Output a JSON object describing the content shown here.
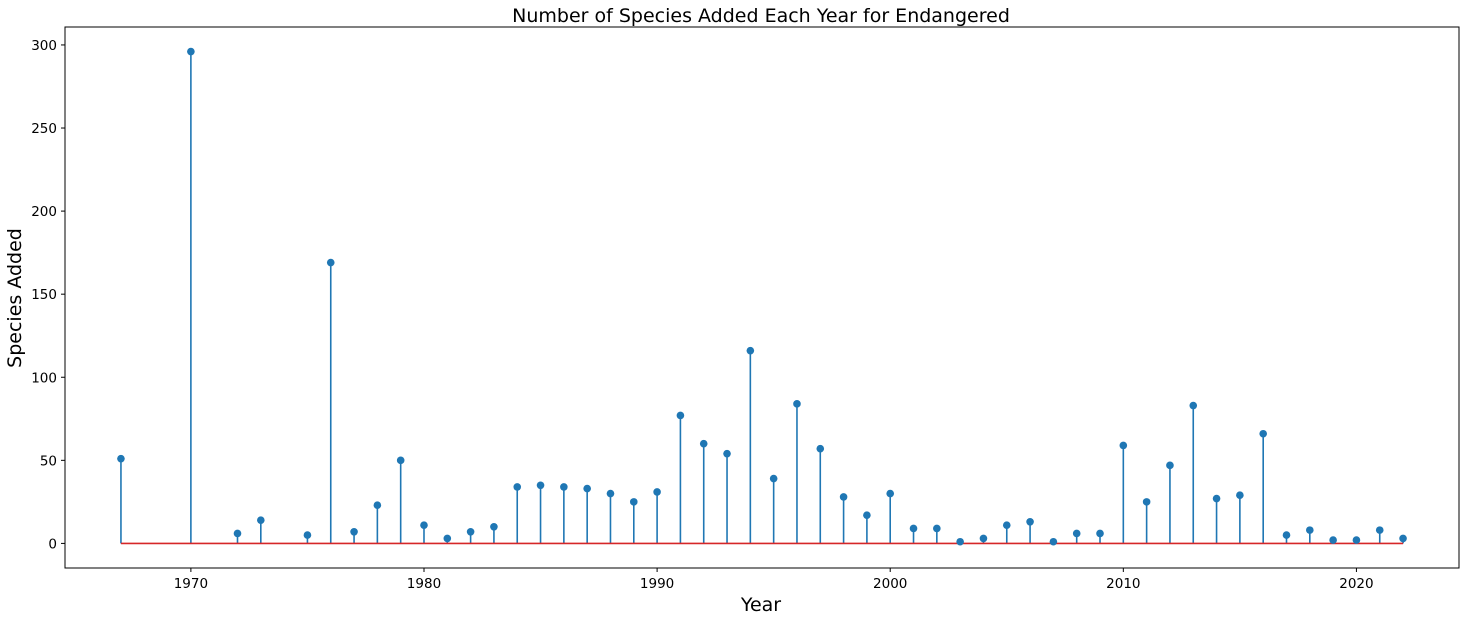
{
  "chart_data": {
    "type": "stem",
    "title": "Number of Species Added Each Year for Endangered",
    "xlabel": "Year",
    "ylabel": "Species Added",
    "xlim": [
      1964.6,
      2024.4
    ],
    "ylim": [
      -14.8,
      310.8
    ],
    "x_ticks": [
      1970,
      1980,
      1990,
      2000,
      2010,
      2020
    ],
    "y_ticks": [
      0,
      50,
      100,
      150,
      200,
      250,
      300
    ],
    "grid": false,
    "legend": "none",
    "colors": {
      "stem": "#1f77b4",
      "marker": "#1f77b4",
      "baseline": "#d62728"
    },
    "x": [
      1967,
      1970,
      1972,
      1973,
      1975,
      1976,
      1977,
      1978,
      1979,
      1980,
      1981,
      1982,
      1983,
      1984,
      1985,
      1986,
      1987,
      1988,
      1989,
      1990,
      1991,
      1992,
      1993,
      1994,
      1995,
      1996,
      1997,
      1998,
      1999,
      2000,
      2001,
      2002,
      2003,
      2004,
      2005,
      2006,
      2007,
      2008,
      2009,
      2010,
      2011,
      2012,
      2013,
      2014,
      2015,
      2016,
      2017,
      2018,
      2019,
      2020,
      2021,
      2022
    ],
    "values": [
      51,
      296,
      6,
      14,
      5,
      169,
      7,
      23,
      50,
      11,
      3,
      7,
      10,
      34,
      35,
      34,
      33,
      30,
      25,
      31,
      77,
      60,
      54,
      116,
      39,
      84,
      57,
      28,
      17,
      30,
      9,
      9,
      1,
      3,
      11,
      13,
      1,
      6,
      6,
      59,
      25,
      47,
      83,
      27,
      29,
      66,
      5,
      8,
      2,
      2,
      8,
      3
    ]
  }
}
